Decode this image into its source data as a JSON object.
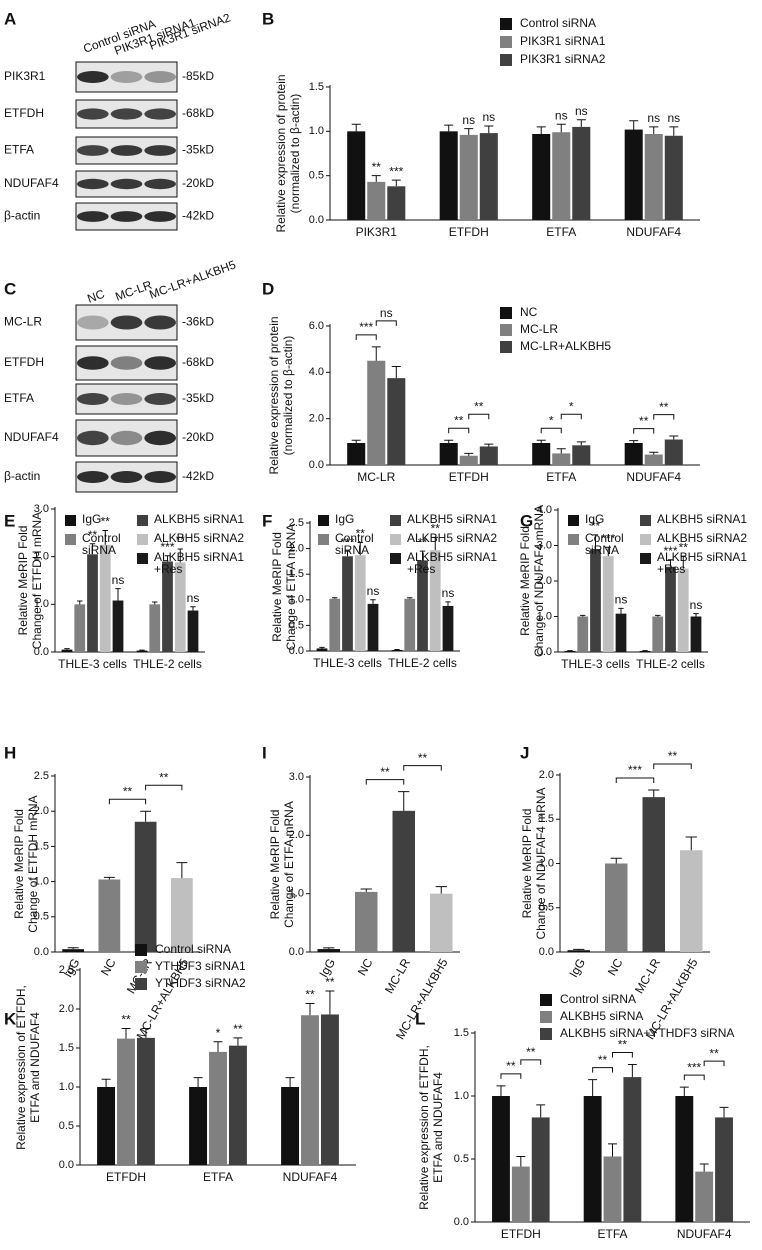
{
  "blots": [
    {
      "panel": "A",
      "lanes": [
        "Control siRNA",
        "PIK3R1 siRNA1",
        "PIK3R1 siRNA2"
      ],
      "rows": [
        {
          "label": "PIK3R1",
          "size": "-85kD"
        },
        {
          "label": "ETFDH",
          "size": "-68kD"
        },
        {
          "label": "ETFA",
          "size": "-35kD"
        },
        {
          "label": "NDUFAF4",
          "size": "-20kD"
        },
        {
          "label": "β-actin",
          "size": "-42kD"
        }
      ]
    },
    {
      "panel": "C",
      "lanes": [
        "NC",
        "MC-LR",
        "MC-LR+ALKBH5"
      ],
      "rows": [
        {
          "label": "MC-LR",
          "size": "-36kD"
        },
        {
          "label": "ETFDH",
          "size": "-68kD"
        },
        {
          "label": "ETFA",
          "size": "-35kD"
        },
        {
          "label": "NDUFAF4",
          "size": "-20kD"
        },
        {
          "label": "β-actin",
          "size": "-42kD"
        }
      ]
    }
  ],
  "chart_data": [
    {
      "type": "bar",
      "panel": "B",
      "ylabel": [
        "Relative expression of protein",
        "(normalized to β-actin)"
      ],
      "categories": [
        "PIK3R1",
        "ETFDH",
        "ETFA",
        "NDUFAF4"
      ],
      "ylim": [
        0,
        1.5
      ],
      "yticks": [
        {
          "value": 0,
          "label": "0.0"
        },
        0.5,
        {
          "value": 1,
          "label": "1.0"
        },
        1.5
      ],
      "brackets": false,
      "series": [
        {
          "name": "Control siRNA",
          "color": "#111111",
          "values": [
            1.0,
            1.0,
            0.97,
            1.02
          ],
          "errors": [
            0.08,
            0.07,
            0.08,
            0.1
          ]
        },
        {
          "name": "PIK3R1 siRNA1",
          "color": "#808080",
          "values": [
            0.43,
            0.96,
            0.99,
            0.97
          ],
          "errors": [
            0.07,
            0.07,
            0.09,
            0.08
          ],
          "annotations": [
            "**",
            "ns",
            "ns",
            "ns"
          ]
        },
        {
          "name": "PIK3R1 siRNA2",
          "color": "#404040",
          "values": [
            0.38,
            0.98,
            1.05,
            0.95
          ],
          "errors": [
            0.07,
            0.08,
            0.08,
            0.1
          ],
          "annotations": [
            "***",
            "ns",
            "ns",
            "ns"
          ]
        }
      ]
    },
    {
      "type": "bar",
      "panel": "D",
      "ylabel": [
        "Relative expression of protein",
        "(normalized to β-actin)"
      ],
      "categories": [
        "MC-LR",
        "ETFDH",
        "ETFA",
        "NDUFAF4"
      ],
      "ylim": [
        0,
        6
      ],
      "yticks": [
        {
          "value": 0,
          "label": "0.0"
        },
        {
          "value": 2,
          "label": "2.0"
        },
        {
          "value": 4,
          "label": "4.0"
        },
        {
          "value": 6,
          "label": "6.0"
        }
      ],
      "brackets": true,
      "series": [
        {
          "name": "NC",
          "color": "#111111",
          "values": [
            0.95,
            0.95,
            0.95,
            0.95
          ],
          "errors": [
            0.12,
            0.12,
            0.12,
            0.1
          ]
        },
        {
          "name": "MC-LR",
          "color": "#808080",
          "values": [
            4.5,
            0.4,
            0.5,
            0.45
          ],
          "errors": [
            0.6,
            0.1,
            0.2,
            0.1
          ],
          "annotations": [
            "***",
            "**",
            "*",
            "**"
          ]
        },
        {
          "name": "MC-LR+ALKBH5",
          "color": "#404040",
          "values": [
            3.75,
            0.8,
            0.85,
            1.1
          ],
          "errors": [
            0.5,
            0.1,
            0.15,
            0.15
          ],
          "annotations": [
            "ns",
            "**",
            "*",
            "**"
          ]
        }
      ]
    },
    {
      "type": "bar",
      "panel": "E",
      "ylabel": [
        "Relative MeRIP Fold",
        "Change of ETFDH mRNA"
      ],
      "categories": [
        "THLE-3 cells",
        "THLE-2 cells"
      ],
      "ylim": [
        0,
        3
      ],
      "yticks": [
        {
          "value": 0,
          "label": "0.0"
        },
        {
          "value": 1,
          "label": "1.0"
        },
        {
          "value": 2,
          "label": "2.0"
        },
        {
          "value": 3,
          "label": "3.0"
        }
      ],
      "brackets": false,
      "series": [
        {
          "name": [
            "IgG"
          ],
          "color": "#111111",
          "values": [
            0.05,
            0.03
          ],
          "errors": [
            0.02,
            0.01
          ]
        },
        {
          "name": [
            "Control",
            "siRNA"
          ],
          "color": "#808080",
          "values": [
            1.0,
            1.0
          ],
          "errors": [
            0.07,
            0.05
          ]
        },
        {
          "name": [
            "ALKBH5 siRNA1"
          ],
          "color": "#404040",
          "values": [
            2.05,
            1.9
          ],
          "errors": [
            0.22,
            0.12
          ],
          "annotations": [
            "**",
            "***"
          ]
        },
        {
          "name": [
            "ALKBH5 siRNA2"
          ],
          "color": "#bfbfbf",
          "values": [
            2.25,
            1.88
          ],
          "errors": [
            0.3,
            0.28
          ],
          "annotations": [
            "**",
            "**"
          ]
        },
        {
          "name": [
            "ALKBH5 siRNA1",
            "+Res"
          ],
          "color": "#1a1a1a",
          "values": [
            1.08,
            0.87
          ],
          "errors": [
            0.25,
            0.08
          ],
          "annotations": [
            "ns",
            "ns"
          ]
        }
      ]
    },
    {
      "type": "bar",
      "panel": "F",
      "ylabel": [
        "Relative MeRIP Fold",
        "Change of ETFA mRNA"
      ],
      "categories": [
        "THLE-3 cells",
        "THLE-2 cells"
      ],
      "ylim": [
        0,
        2.5
      ],
      "yticks": [
        {
          "value": 0,
          "label": "0.0"
        },
        0.5,
        {
          "value": 1,
          "label": "1.0"
        },
        1.5,
        {
          "value": 2,
          "label": "2.0"
        },
        2.5
      ],
      "brackets": false,
      "series": [
        {
          "name": [
            "IgG"
          ],
          "color": "#111111",
          "values": [
            0.05,
            0.02
          ],
          "errors": [
            0.02,
            0.01
          ]
        },
        {
          "name": [
            "Control",
            "siRNA"
          ],
          "color": "#808080",
          "values": [
            1.02,
            1.02
          ],
          "errors": [
            0.02,
            0.02
          ]
        },
        {
          "name": [
            "ALKBH5 siRNA1"
          ],
          "color": "#404040",
          "values": [
            1.85,
            1.77
          ],
          "errors": [
            0.1,
            0.18
          ],
          "annotations": [
            "***",
            "**"
          ]
        },
        {
          "name": [
            "ALKBH5 siRNA2"
          ],
          "color": "#bfbfbf",
          "values": [
            1.87,
            1.97
          ],
          "errors": [
            0.25,
            0.25
          ],
          "annotations": [
            "**",
            "**"
          ]
        },
        {
          "name": [
            "ALKBH5 siRNA1",
            "+Res"
          ],
          "color": "#1a1a1a",
          "values": [
            0.92,
            0.88
          ],
          "errors": [
            0.08,
            0.08
          ],
          "annotations": [
            "ns",
            "ns"
          ]
        }
      ]
    },
    {
      "type": "bar",
      "panel": "G",
      "ylabel": [
        "Relative MeRIP Fold",
        "Change of NDUFAF4 mRNA"
      ],
      "categories": [
        "THLE-3 cells",
        "THLE-2 cells"
      ],
      "ylim": [
        0,
        4
      ],
      "yticks": [
        {
          "value": 0,
          "label": "0.0"
        },
        {
          "value": 1,
          "label": "1.0"
        },
        {
          "value": 2,
          "label": "2.0"
        },
        {
          "value": 3,
          "label": "3.0"
        },
        {
          "value": 4,
          "label": "4.0"
        }
      ],
      "brackets": false,
      "series": [
        {
          "name": [
            "IgG"
          ],
          "color": "#111111",
          "values": [
            0.03,
            0.03
          ],
          "errors": [
            0.01,
            0.01
          ]
        },
        {
          "name": [
            "Control",
            "siRNA"
          ],
          "color": "#808080",
          "values": [
            1.0,
            1.0
          ],
          "errors": [
            0.03,
            0.03
          ]
        },
        {
          "name": [
            "ALKBH5 siRNA1"
          ],
          "color": "#404040",
          "values": [
            2.9,
            2.4
          ],
          "errors": [
            0.4,
            0.2
          ],
          "annotations": [
            "**",
            "***"
          ]
        },
        {
          "name": [
            "ALKBH5 siRNA2"
          ],
          "color": "#bfbfbf",
          "values": [
            2.7,
            2.35
          ],
          "errors": [
            0.25,
            0.35
          ],
          "annotations": [
            "***",
            "**"
          ]
        },
        {
          "name": [
            "ALKBH5 siRNA1",
            "+Res"
          ],
          "color": "#1a1a1a",
          "values": [
            1.08,
            1.0
          ],
          "errors": [
            0.15,
            0.08
          ],
          "annotations": [
            "ns",
            "ns"
          ]
        }
      ]
    },
    {
      "type": "bar",
      "panel": "H",
      "ylabel": [
        "Relative MeRIP Fold",
        "Change of ETFDH mRNA"
      ],
      "categories": [
        "IgG",
        "NC",
        "MC-LR",
        "MC-LR+ALKBH5"
      ],
      "ylim": [
        0,
        2.5
      ],
      "yticks": [
        {
          "value": 0,
          "label": "0.0"
        },
        0.5,
        {
          "value": 1,
          "label": "1.0"
        },
        1.5,
        {
          "value": 2,
          "label": "2.0"
        },
        2.5
      ],
      "brackets": true,
      "series": [
        {
          "colors": [
            "#111111",
            "#808080",
            "#404040",
            "#bfbfbf"
          ],
          "values": [
            0.04,
            1.03,
            1.85,
            1.05
          ],
          "errors": [
            0.02,
            0.03,
            0.15,
            0.22
          ],
          "annotations": [
            null,
            null,
            "**",
            "**"
          ]
        }
      ]
    },
    {
      "type": "bar",
      "panel": "I",
      "ylabel": [
        "Relative MeRIP Fold",
        "Change of ETFA mRNA"
      ],
      "categories": [
        "IgG",
        "NC",
        "MC-LR",
        "MC-LR+ALKBH5"
      ],
      "ylim": [
        0,
        3
      ],
      "yticks": [
        {
          "value": 0,
          "label": "0.0"
        },
        {
          "value": 1,
          "label": "1.0"
        },
        {
          "value": 2,
          "label": "2.0"
        },
        {
          "value": 3,
          "label": "3.0"
        }
      ],
      "brackets": true,
      "series": [
        {
          "colors": [
            "#111111",
            "#808080",
            "#404040",
            "#bfbfbf"
          ],
          "values": [
            0.05,
            1.03,
            2.42,
            1.0
          ],
          "errors": [
            0.02,
            0.05,
            0.33,
            0.12
          ],
          "annotations": [
            null,
            null,
            "**",
            "**"
          ]
        }
      ]
    },
    {
      "type": "bar",
      "panel": "J",
      "ylabel": [
        "Relative MeRIP Fold",
        "Change of NDUFAF4 mRNA"
      ],
      "categories": [
        "IgG",
        "NC",
        "MC-LR",
        "MC-LR+ALKBH5"
      ],
      "ylim": [
        0,
        2
      ],
      "yticks": [
        {
          "value": 0,
          "label": "0.0"
        },
        0.5,
        {
          "value": 1,
          "label": "1.0"
        },
        1.5,
        {
          "value": 2,
          "label": "2.0"
        }
      ],
      "brackets": true,
      "series": [
        {
          "colors": [
            "#111111",
            "#808080",
            "#404040",
            "#bfbfbf"
          ],
          "values": [
            0.02,
            1.0,
            1.75,
            1.15
          ],
          "errors": [
            0.01,
            0.06,
            0.08,
            0.15
          ],
          "annotations": [
            null,
            null,
            "***",
            "**"
          ]
        }
      ]
    },
    {
      "type": "bar",
      "panel": "K",
      "ylabel": [
        "Relative expression of ETFDH,",
        "ETFA and NDUFAF4"
      ],
      "categories": [
        "ETFDH",
        "ETFA",
        "NDUFAF4"
      ],
      "ylim": [
        0,
        2.5
      ],
      "yticks": [
        {
          "value": 0,
          "label": "0.0"
        },
        0.5,
        {
          "value": 1,
          "label": "1.0"
        },
        1.5,
        {
          "value": 2,
          "label": "2.0"
        },
        2.5
      ],
      "brackets": false,
      "series": [
        {
          "name": "Control siRNA",
          "color": "#111111",
          "values": [
            1.0,
            1.0,
            1.0
          ],
          "errors": [
            0.1,
            0.12,
            0.12
          ]
        },
        {
          "name": "YTHDF3 siRNA1",
          "color": "#808080",
          "values": [
            1.62,
            1.45,
            1.92
          ],
          "errors": [
            0.13,
            0.13,
            0.15
          ],
          "annotations": [
            "**",
            "*",
            "**"
          ]
        },
        {
          "name": "YTHDF3 siRNA2",
          "color": "#404040",
          "values": [
            1.63,
            1.53,
            1.93
          ],
          "errors": [
            0.12,
            0.1,
            0.3
          ],
          "annotations": [
            null,
            "**",
            "**"
          ]
        }
      ]
    },
    {
      "type": "bar",
      "panel": "L",
      "ylabel": [
        "Relative expression of ETFDH,",
        "ETFA and NDUFAF4"
      ],
      "categories": [
        "ETFDH",
        "ETFA",
        "NDUFAF4"
      ],
      "ylim": [
        0,
        1.5
      ],
      "yticks": [
        {
          "value": 0,
          "label": "0.0"
        },
        0.5,
        {
          "value": 1,
          "label": "1.0"
        },
        1.5
      ],
      "brackets": true,
      "series": [
        {
          "name": "Control siRNA",
          "color": "#111111",
          "values": [
            1.0,
            1.0,
            1.0
          ],
          "errors": [
            0.08,
            0.13,
            0.07
          ]
        },
        {
          "name": "ALKBH5 siRNA",
          "color": "#808080",
          "values": [
            0.44,
            0.52,
            0.4
          ],
          "errors": [
            0.08,
            0.1,
            0.06
          ],
          "annotations": [
            "**",
            "**",
            "***"
          ]
        },
        {
          "name": "ALKBH5 siRNA+YTHDF3 siRNA",
          "color": "#404040",
          "values": [
            0.83,
            1.15,
            0.83
          ],
          "errors": [
            0.1,
            0.1,
            0.08
          ],
          "annotations": [
            "**",
            "**",
            "**"
          ]
        }
      ]
    }
  ]
}
